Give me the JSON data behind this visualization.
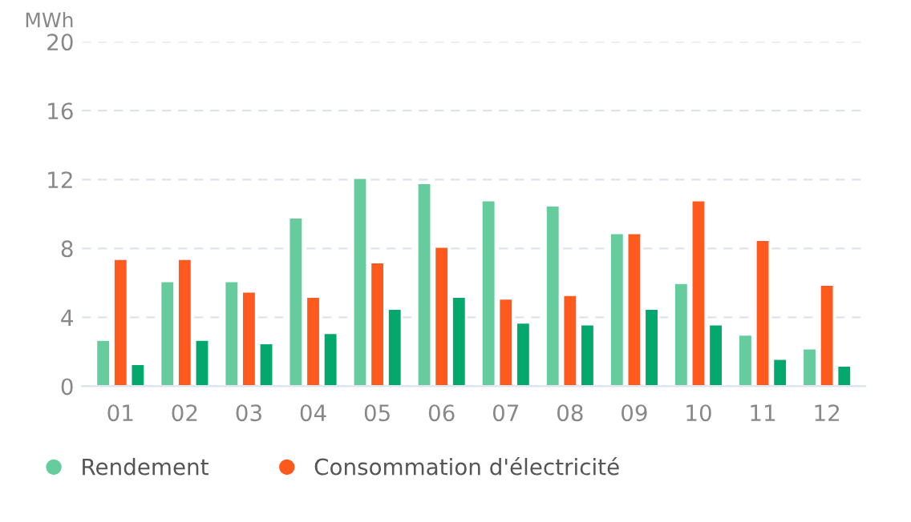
{
  "chart_data": {
    "type": "bar",
    "ylabel": "MWh",
    "categories": [
      "01",
      "02",
      "03",
      "04",
      "05",
      "06",
      "07",
      "08",
      "09",
      "10",
      "11",
      "12"
    ],
    "series": [
      {
        "name": "Rendement",
        "color": "#66cc9e",
        "values": [
          2.7,
          6.1,
          6.1,
          9.8,
          12.1,
          11.8,
          10.8,
          10.5,
          8.9,
          6.0,
          3.0,
          2.2
        ]
      },
      {
        "name": "Consommation d'électricité",
        "color": "#fe5a1d",
        "values": [
          7.4,
          7.4,
          5.5,
          5.2,
          7.2,
          8.1,
          5.1,
          5.3,
          8.9,
          10.8,
          8.5,
          5.9
        ]
      },
      {
        "color": "#05a86c",
        "values": [
          1.3,
          2.7,
          2.5,
          3.1,
          4.5,
          5.2,
          3.7,
          3.6,
          4.5,
          3.6,
          1.6,
          1.2
        ]
      }
    ],
    "ylim": [
      0,
      20
    ],
    "yticks": [
      0,
      4,
      8,
      12,
      16,
      20
    ],
    "grid": "y",
    "legend": "bottom"
  }
}
